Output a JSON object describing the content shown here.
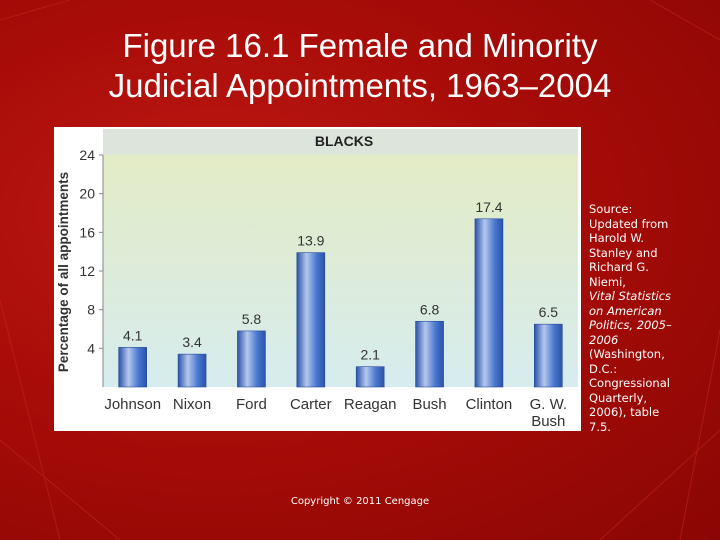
{
  "slide": {
    "title_line1": "Figure 16.1 Female and Minority",
    "title_line2": "Judicial Appointments, 1963–2004",
    "copyright": "Copyright © 2011 Cengage",
    "source_lines": [
      "Source:",
      "Updated from",
      "Harold W.",
      "Stanley and",
      "Richard G.",
      "Niemi,",
      "Vital Statistics",
      "on American",
      "Politics, 2005–",
      "2006",
      "(Washington,",
      "D.C.:",
      "Congressional",
      "Quarterly,",
      "2006), table",
      "7.5."
    ],
    "source_italic_lines": [
      6,
      7,
      8,
      9
    ],
    "colors": {
      "background": "#a80c08",
      "plot_top": "#e4ecc6",
      "plot_bottom": "#d6ecee",
      "bar": "#3a68c8",
      "bar_highlight": "#b4c8ee",
      "header_band": "#dce4dc"
    }
  },
  "chart_data": {
    "type": "bar",
    "title": "BLACKS",
    "ylabel": "Percentage of all appointments",
    "xlabel": "",
    "categories": [
      [
        "Johnson"
      ],
      [
        "Nixon"
      ],
      [
        "Ford"
      ],
      [
        "Carter"
      ],
      [
        "Reagan"
      ],
      [
        "Bush"
      ],
      [
        "Clinton"
      ],
      [
        "G. W.",
        "Bush"
      ]
    ],
    "values": [
      4.1,
      3.4,
      5.8,
      13.9,
      2.1,
      6.8,
      17.4,
      6.5
    ],
    "value_labels": [
      "4.1",
      "3.4",
      "5.8",
      "13.9",
      "2.1",
      "6.8",
      "17.4",
      "6.5"
    ],
    "ylim": [
      0,
      24
    ],
    "yticks": [
      4,
      8,
      12,
      16,
      20,
      24
    ],
    "grid": false,
    "legend": "none"
  }
}
